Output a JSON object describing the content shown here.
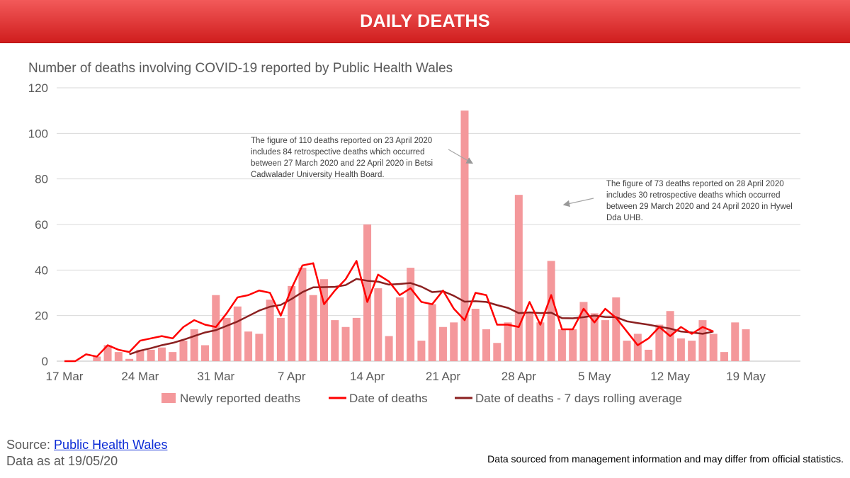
{
  "header": {
    "title": "DAILY DEATHS"
  },
  "chart_data": {
    "type": "bar+line",
    "title": "Number of deaths involving COVID-19 reported by Public Health Wales",
    "xlabel": "",
    "ylabel": "",
    "ylim": [
      0,
      120
    ],
    "yticks": [
      0,
      20,
      40,
      60,
      80,
      100,
      120
    ],
    "grid": true,
    "legend_position": "bottom",
    "x_start": "17 Mar",
    "x_tick_labels": [
      "17 Mar",
      "24 Mar",
      "31 Mar",
      "7 Apr",
      "14 Apr",
      "21 Apr",
      "28 Apr",
      "5 May",
      "12 May",
      "19 May"
    ],
    "series": [
      {
        "name": "Newly reported deaths",
        "type": "bar",
        "color": "#f4989b",
        "values": [
          0,
          0,
          0,
          2,
          7,
          4,
          1,
          5,
          5,
          6,
          4,
          9,
          14,
          7,
          29,
          19,
          24,
          13,
          12,
          27,
          19,
          33,
          41,
          29,
          36,
          18,
          15,
          19,
          60,
          32,
          11,
          28,
          41,
          9,
          25,
          15,
          17,
          110,
          23,
          14,
          8,
          17,
          73,
          21,
          17,
          44,
          14,
          14,
          26,
          21,
          18,
          28,
          9,
          12,
          5,
          16,
          22,
          10,
          9,
          18,
          12,
          4,
          17,
          14
        ]
      },
      {
        "name": "Date of deaths",
        "type": "line",
        "color": "#ff0000",
        "values": [
          0,
          0,
          3,
          2,
          7,
          5,
          4,
          9,
          10,
          11,
          10,
          15,
          18,
          16,
          15,
          21,
          28,
          29,
          31,
          30,
          20,
          32,
          42,
          43,
          25,
          31,
          36,
          44,
          26,
          38,
          35,
          29,
          32,
          26,
          25,
          31,
          23,
          18,
          30,
          29,
          16,
          16,
          15,
          26,
          16,
          29,
          14,
          14,
          23,
          17,
          23,
          19,
          13,
          7,
          10,
          15,
          11,
          15,
          12,
          15,
          13
        ]
      },
      {
        "name": "Date of deaths - 7 days rolling average",
        "type": "line",
        "color": "#8b2020",
        "values": [
          null,
          null,
          null,
          null,
          null,
          null,
          3,
          4.6,
          5.7,
          7,
          8,
          9.4,
          11,
          12.6,
          13.6,
          15.5,
          17.4,
          19.8,
          22.2,
          23.9,
          24.7,
          27.3,
          30.3,
          32.4,
          32.5,
          32.6,
          33.4,
          36.1,
          35.3,
          34.9,
          33.6,
          33.9,
          34.3,
          32.7,
          30.3,
          30.7,
          28.7,
          26.1,
          26.3,
          26.0,
          24.6,
          23.4,
          21.1,
          21.4,
          21.1,
          21.3,
          18.9,
          18.8,
          19.3,
          20.0,
          19.4,
          19.3,
          17.5,
          16.7,
          16.0,
          15.1,
          14.3,
          13.0,
          12.6,
          12.0,
          13.0
        ]
      }
    ],
    "annotations": [
      {
        "text": "The figure of 110 deaths reported on 23 April 2020 includes 84 retrospective deaths which occurred between 27 March 2020 and 22 April 2020 in Betsi Cadwalader University Health Board.",
        "target_index": 37,
        "target_value": 110
      },
      {
        "text": "The figure of 73 deaths reported on 28 April 2020 includes 30 retrospective deaths which occurred between 29 March 2020 and 24 April 2020 in Hywel  Dda UHB.",
        "target_index": 42,
        "target_value": 73
      }
    ]
  },
  "footer": {
    "source_label": "Source: ",
    "source_link": "Public Health Wales",
    "data_date": "Data as at 19/05/20",
    "disclaimer": "Data sourced from management information and may differ from official statistics."
  }
}
